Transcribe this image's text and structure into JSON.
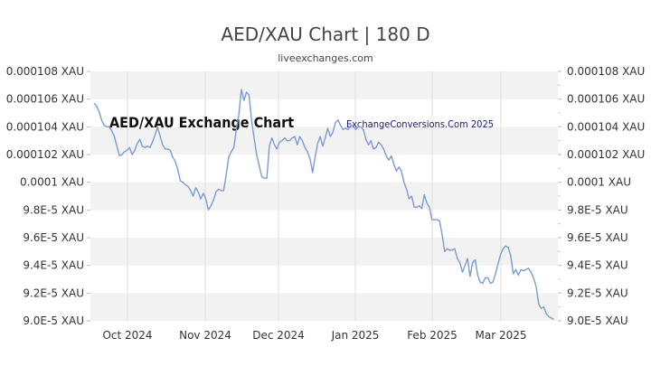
{
  "header": {
    "title": "AED/XAU Chart | 180 D",
    "subtitle": "liveexchanges.com"
  },
  "watermarks": {
    "left": "AED/XAU Exchange Chart",
    "right": "ExchangeConversions.Com 2025"
  },
  "colors": {
    "line": "#7b9bd1",
    "band": "#f2f2f2",
    "grid": "#dddddd",
    "text": "#333333"
  },
  "chart_data": {
    "type": "line",
    "title": "AED/XAU Chart | 180 D",
    "subtitle": "liveexchanges.com",
    "ylim": [
      9e-05,
      0.000108
    ],
    "y_ticks": [
      9e-05,
      9.2e-05,
      9.4e-05,
      9.6e-05,
      9.8e-05,
      0.0001,
      0.000102,
      0.000104,
      0.000106,
      0.000108
    ],
    "y_tick_labels": [
      "9.0E-5 XAU",
      "9.2E-5 XAU",
      "9.4E-5 XAU",
      "9.6E-5 XAU",
      "9.8E-5 XAU",
      "0.0001 XAU",
      "0.000102 XAU",
      "0.000104 XAU",
      "0.000106 XAU",
      "0.000108 XAU"
    ],
    "x_tick_labels": [
      "Oct 2024",
      "Nov 2024",
      "Dec 2024",
      "Jan 2025",
      "Feb 2025",
      "Mar 2025"
    ],
    "x_count": 180,
    "grid": true,
    "legend": "none",
    "series": [
      {
        "values": [
          0.0001057,
          0.0001055,
          0.0001051,
          0.0001045,
          0.0001041,
          0.000104,
          0.000104,
          0.0001037,
          0.0001033,
          0.0001026,
          0.0001019,
          0.000102,
          0.0001022,
          0.0001023,
          0.0001025,
          0.000102,
          0.0001023,
          0.0001028,
          0.0001031,
          0.0001026,
          0.0001025,
          0.0001026,
          0.0001025,
          0.0001029,
          0.0001034,
          0.000104,
          0.0001033,
          0.0001027,
          0.0001024,
          0.0001024,
          0.0001023,
          0.0001018,
          0.0001015,
          0.0001009,
          0.0001001,
          0.0001,
          9.98e-05,
          9.97e-05,
          9.94e-05,
          9.9e-05,
          9.96e-05,
          9.93e-05,
          9.88e-05,
          9.92e-05,
          9.88e-05,
          9.8e-05,
          9.83e-05,
          9.87e-05,
          9.93e-05,
          9.95e-05,
          9.94e-05,
          9.94e-05,
          0.0001005,
          0.0001018,
          0.0001022,
          0.0001025,
          0.0001038,
          0.0001049,
          0.0001067,
          0.0001059,
          0.0001065,
          0.0001063,
          0.0001045,
          0.0001032,
          0.000102,
          0.0001012,
          0.0001004,
          0.0001003,
          0.0001003,
          0.0001026,
          0.0001032,
          0.0001027,
          0.0001024,
          0.0001029,
          0.000103,
          0.0001032,
          0.000103,
          0.000103,
          0.0001032,
          0.0001033,
          0.0001027,
          0.0001033,
          0.000103,
          0.0001025,
          0.0001022,
          0.0001017,
          0.0001007,
          0.0001018,
          0.0001028,
          0.0001033,
          0.0001026,
          0.0001032,
          0.0001039,
          0.0001033,
          0.0001036,
          0.0001043,
          0.0001045,
          0.0001041,
          0.0001038,
          0.0001039,
          0.0001038,
          0.0001041,
          0.0001041,
          0.0001038,
          0.000104,
          0.000104,
          0.0001038,
          0.0001031,
          0.0001027,
          0.000103,
          0.0001024,
          0.0001025,
          0.0001029,
          0.0001027,
          0.0001024,
          0.0001019,
          0.0001016,
          0.0001019,
          0.0001013,
          0.0001008,
          0.0001011,
          0.0001008,
          0.0001,
          9.95e-05,
          9.88e-05,
          9.9e-05,
          9.82e-05,
          9.82e-05,
          9.83e-05,
          9.81e-05,
          9.91e-05,
          9.85e-05,
          9.82e-05,
          9.73e-05,
          9.73e-05,
          9.73e-05,
          9.72e-05,
          9.62e-05,
          9.5e-05,
          9.52e-05,
          9.51e-05,
          9.51e-05,
          9.52e-05,
          9.45e-05,
          9.42e-05,
          9.35e-05,
          9.4e-05,
          9.45e-05,
          9.32e-05,
          9.42e-05,
          9.44e-05,
          9.33e-05,
          9.28e-05,
          9.27e-05,
          9.31e-05,
          9.31e-05,
          9.27e-05,
          9.28e-05,
          9.34e-05,
          9.41e-05,
          9.48e-05,
          9.52e-05,
          9.54e-05,
          9.53e-05,
          9.47e-05,
          9.34e-05,
          9.37e-05,
          9.33e-05,
          9.37e-05,
          9.36e-05,
          9.37e-05,
          9.38e-05,
          9.35e-05,
          9.31e-05,
          9.25e-05,
          9.12e-05,
          9.09e-05,
          9.1e-05,
          9.05e-05,
          9.03e-05,
          9.02e-05,
          9.01e-05
        ]
      }
    ]
  }
}
